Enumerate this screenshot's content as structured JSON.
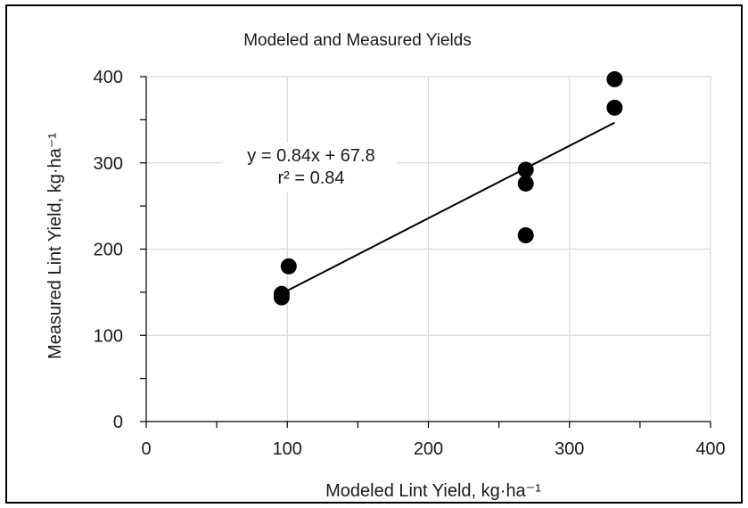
{
  "chart_data": {
    "type": "scatter",
    "title": "Modeled and Measured Yields",
    "xlabel": "Modeled Lint Yield, kg·ha⁻¹",
    "ylabel": "Measured Lint Yield, kg·ha⁻¹",
    "xlim": [
      0,
      400
    ],
    "ylim": [
      0,
      400
    ],
    "x_ticks": [
      0,
      100,
      200,
      300,
      400
    ],
    "y_ticks": [
      0,
      100,
      200,
      300,
      400
    ],
    "grid": true,
    "points": [
      {
        "x": 96,
        "y": 148
      },
      {
        "x": 96,
        "y": 144
      },
      {
        "x": 101,
        "y": 180
      },
      {
        "x": 269,
        "y": 292
      },
      {
        "x": 269,
        "y": 276
      },
      {
        "x": 269,
        "y": 216
      },
      {
        "x": 332,
        "y": 397
      },
      {
        "x": 332,
        "y": 364
      }
    ],
    "trendline": {
      "slope": 0.84,
      "intercept": 67.8,
      "x_range": [
        96,
        332
      ]
    },
    "annotations": {
      "equation": "y = 0.84x + 67.8",
      "r2": "r² = 0.84"
    },
    "colors": {
      "points": "#000000",
      "grid": "#d9d9d9",
      "line": "#000000"
    }
  }
}
